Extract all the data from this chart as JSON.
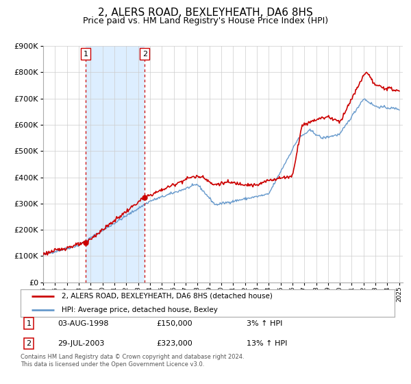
{
  "title": "2, ALERS ROAD, BEXLEYHEATH, DA6 8HS",
  "subtitle": "Price paid vs. HM Land Registry's House Price Index (HPI)",
  "legend_line1": "2, ALERS ROAD, BEXLEYHEATH, DA6 8HS (detached house)",
  "legend_line2": "HPI: Average price, detached house, Bexley",
  "footnote1": "Contains HM Land Registry data © Crown copyright and database right 2024.",
  "footnote2": "This data is licensed under the Open Government Licence v3.0.",
  "table_row1_num": "1",
  "table_row1_date": "03-AUG-1998",
  "table_row1_price": "£150,000",
  "table_row1_hpi": "3% ↑ HPI",
  "table_row2_num": "2",
  "table_row2_date": "29-JUL-2003",
  "table_row2_price": "£323,000",
  "table_row2_hpi": "13% ↑ HPI",
  "sale1_year": 1998.58,
  "sale1_price": 150000,
  "sale2_year": 2003.56,
  "sale2_price": 323000,
  "red_line_color": "#cc0000",
  "blue_line_color": "#6699cc",
  "sale_marker_color": "#cc0000",
  "shaded_region_color": "#ddeeff",
  "vline_color": "#cc0000",
  "grid_color": "#cccccc",
  "background_color": "#ffffff",
  "title_fontsize": 11,
  "subtitle_fontsize": 9,
  "ylim": [
    0,
    900000
  ],
  "xlim_start": 1995,
  "xlim_end": 2025
}
